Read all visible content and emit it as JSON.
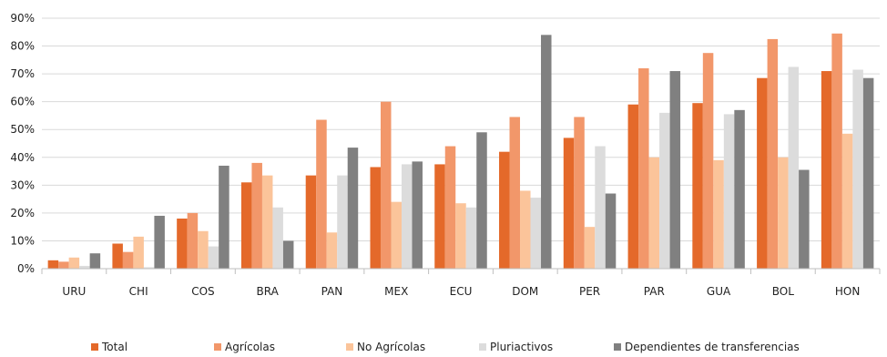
{
  "chart_data": {
    "type": "bar",
    "title": "",
    "xlabel": "",
    "ylabel": "",
    "ylim": [
      0,
      90
    ],
    "ytick_labels": [
      "0%",
      "10%",
      "20%",
      "30%",
      "40%",
      "50%",
      "60%",
      "70%",
      "80%",
      "90%"
    ],
    "categories": [
      "URU",
      "CHI",
      "COS",
      "BRA",
      "PAN",
      "MEX",
      "ECU",
      "DOM",
      "PER",
      "PAR",
      "GUA",
      "BOL",
      "HON"
    ],
    "series": [
      {
        "name": "Total",
        "color": "#e4692a",
        "values": [
          3,
          9,
          18,
          31,
          33.5,
          36.5,
          37.5,
          42,
          47,
          59,
          59.5,
          68.5,
          71
        ]
      },
      {
        "name": "Agrícolas",
        "color": "#f2976a",
        "values": [
          2.5,
          6,
          20,
          38,
          53.5,
          60,
          44,
          54.5,
          54.5,
          72,
          77.5,
          82.5,
          84.5
        ]
      },
      {
        "name": "No Agrícolas",
        "color": "#fbc49a",
        "values": [
          4,
          11.5,
          13.5,
          33.5,
          13,
          24,
          23.5,
          28,
          15,
          40,
          39,
          40,
          48.5
        ]
      },
      {
        "name": "Pluriactivos",
        "color": "#dcdcdc",
        "values": [
          1,
          0.5,
          8,
          22,
          33.5,
          37.5,
          22,
          25.5,
          44,
          56,
          55.5,
          72.5,
          71.5
        ]
      },
      {
        "name": "Dependientes de transferencias",
        "color": "#808080",
        "values": [
          5.5,
          19,
          37,
          10,
          43.5,
          38.5,
          49,
          84,
          27,
          71,
          57,
          35.5,
          68.5
        ]
      }
    ],
    "grid": true,
    "legend": "bottom"
  }
}
